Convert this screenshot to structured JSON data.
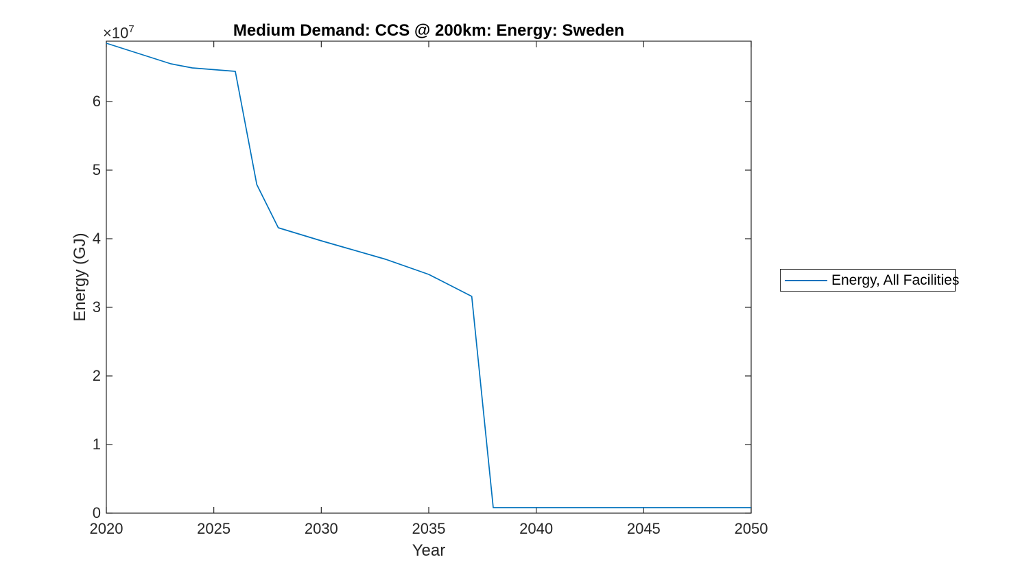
{
  "chart_data": {
    "type": "line",
    "title": "Medium Demand: CCS @ 200km: Energy: Sweden",
    "xlabel": "Year",
    "ylabel": "Energy (GJ)",
    "y_axis_multiplier": {
      "base": "×10",
      "exp": "7"
    },
    "xlim": [
      2020,
      2050
    ],
    "ylim": [
      0,
      68800000
    ],
    "x_ticks": [
      2020,
      2025,
      2030,
      2035,
      2040,
      2045,
      2050
    ],
    "y_ticks": [
      0,
      10000000,
      20000000,
      30000000,
      40000000,
      50000000,
      60000000
    ],
    "y_tick_labels": [
      "0",
      "1",
      "2",
      "3",
      "4",
      "5",
      "6"
    ],
    "grid": false,
    "legend_position": "right-outside",
    "series": [
      {
        "name": "Energy, All Facilities",
        "color": "#0072BD",
        "x": [
          2020,
          2023,
          2024,
          2026,
          2027,
          2028,
          2030,
          2033,
          2035,
          2037,
          2038,
          2040,
          2045,
          2050
        ],
        "y": [
          68500000,
          65500000,
          64900000,
          64400000,
          47900000,
          41600000,
          39700000,
          37000000,
          34800000,
          31600000,
          800000,
          800000,
          800000,
          800000
        ]
      }
    ],
    "colors": {
      "axis": "#262626",
      "background": "#ffffff",
      "title_text": "#000000",
      "tick_text": "#262626"
    }
  },
  "legend": {
    "label": "Energy, All Facilities"
  }
}
